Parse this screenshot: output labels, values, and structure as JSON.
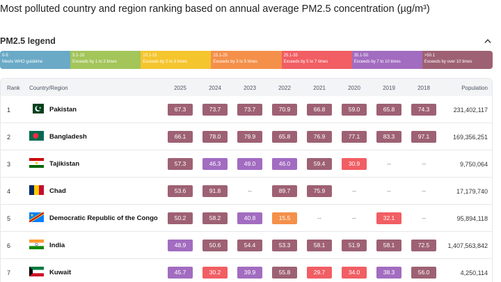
{
  "page": {
    "title": "Most polluted country and region ranking based on annual average PM2.5 concentration (µg/m³)"
  },
  "legend": {
    "title": "PM2.5 legend",
    "segments": [
      {
        "range": "0-5",
        "desc": "Meets WHO guideline",
        "color": "#6aaac7"
      },
      {
        "range": "5.1-10",
        "desc": "Exceeds by 1 to 2 times",
        "color": "#a3c55a"
      },
      {
        "range": "10.1-15",
        "desc": "Exceeds by 2 to 3 times",
        "color": "#f5c52e"
      },
      {
        "range": "15.1-25",
        "desc": "Exceeds by 3 to 5 times",
        "color": "#f4904a"
      },
      {
        "range": "25.1-35",
        "desc": "Exceeds by 5 to 7 times",
        "color": "#f15e63"
      },
      {
        "range": "35.1-50",
        "desc": "Exceeds by 7 to 10 times",
        "color": "#a26cc0"
      },
      {
        "range": ">50.1",
        "desc": "Exceeds by over 10 times",
        "color": "#9e6174"
      }
    ]
  },
  "table": {
    "headers": {
      "rank": "Rank",
      "country": "Country/Region",
      "population": "Population"
    },
    "years": [
      "2025",
      "2024",
      "2023",
      "2022",
      "2021",
      "2020",
      "2019",
      "2018"
    ],
    "rows": [
      {
        "rank": "1",
        "country": "Pakistan",
        "flag": "pakistan",
        "values": [
          "67.3",
          "73.7",
          "73.7",
          "70.9",
          "66.8",
          "59.0",
          "65.8",
          "74.3"
        ],
        "population": "231,402,117"
      },
      {
        "rank": "2",
        "country": "Bangladesh",
        "flag": "bangladesh",
        "values": [
          "66.1",
          "78.0",
          "79.9",
          "65.8",
          "76.9",
          "77.1",
          "83.3",
          "97.1"
        ],
        "population": "169,356,251"
      },
      {
        "rank": "3",
        "country": "Tajikistan",
        "flag": "tajikistan",
        "values": [
          "57.3",
          "46.3",
          "49.0",
          "46.0",
          "59.4",
          "30.9",
          "--",
          "--"
        ],
        "population": "9,750,064"
      },
      {
        "rank": "4",
        "country": "Chad",
        "flag": "chad",
        "values": [
          "53.6",
          "91.8",
          "--",
          "89.7",
          "75.9",
          "--",
          "--",
          "--"
        ],
        "population": "17,179,740"
      },
      {
        "rank": "5",
        "country": "Democratic Republic of the Congo",
        "flag": "drc",
        "values": [
          "50.2",
          "58.2",
          "40.8",
          "15.5",
          "--",
          "--",
          "32.1",
          "--"
        ],
        "population": "95,894,118"
      },
      {
        "rank": "6",
        "country": "India",
        "flag": "india",
        "values": [
          "48.9",
          "50.6",
          "54.4",
          "53.3",
          "58.1",
          "51.9",
          "58.1",
          "72.5"
        ],
        "population": "1,407,563,842"
      },
      {
        "rank": "7",
        "country": "Kuwait",
        "flag": "kuwait",
        "values": [
          "45.7",
          "30.2",
          "39.9",
          "55.8",
          "29.7",
          "34.0",
          "38.3",
          "56.0"
        ],
        "population": "4,250,114"
      }
    ]
  }
}
